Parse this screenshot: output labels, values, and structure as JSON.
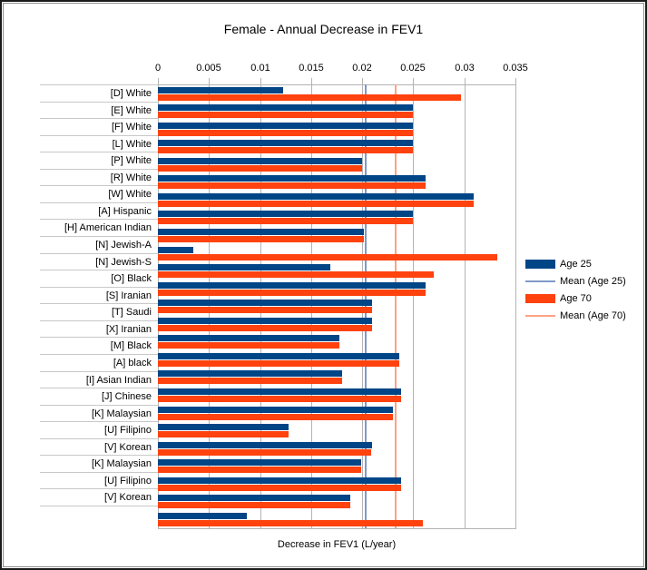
{
  "chart_data": {
    "type": "bar",
    "orientation": "horizontal",
    "title": "Female - Annual Decrease in FEV1",
    "xlabel": "Decrease in FEV1 (L/year)",
    "xlim": [
      0,
      0.035
    ],
    "x_ticks": [
      0,
      0.005,
      0.01,
      0.015,
      0.02,
      0.025,
      0.03,
      0.035
    ],
    "x_tick_labels": [
      "0",
      "0.005",
      "0.01",
      "0.015",
      "0.02",
      "0.025",
      "0.03",
      "0.035"
    ],
    "grid": "vertical-only",
    "legend_position": "right",
    "categories": [
      "[D] White",
      "[E] White",
      "[F] White",
      "[L] White",
      "[P] White",
      "[R] White",
      "[W] White",
      "[A] Hispanic",
      "[H] American Indian",
      "[N] Jewish-A",
      "[N] Jewish-S",
      "[O] Black",
      "[S] Iranian",
      "[T] Saudi",
      "[X] Iranian",
      "[M] Black",
      "[A] black",
      "[I] Asian Indian",
      "[J] Chinese",
      "[K] Malaysian",
      "[U] Filipino",
      "[V] Korean",
      "[K] Malaysian",
      "[U] Filipino",
      "[V] Korean"
    ],
    "series": [
      {
        "name": "Age 25",
        "color": "#004586",
        "values": [
          0.0123,
          0.025,
          0.025,
          0.025,
          0.02,
          0.0262,
          0.0309,
          0.025,
          0.0202,
          0.0035,
          0.0169,
          0.0262,
          0.021,
          0.021,
          0.0178,
          0.0236,
          0.018,
          0.0238,
          0.023,
          0.0128,
          0.021,
          0.0199,
          0.0238,
          0.0188,
          0.0087
        ]
      },
      {
        "name": "Age 70",
        "color": "#ff420e",
        "values": [
          0.0297,
          0.025,
          0.025,
          0.025,
          0.02,
          0.0262,
          0.0309,
          0.025,
          0.0202,
          0.0332,
          0.027,
          0.0262,
          0.021,
          0.021,
          0.0178,
          0.0236,
          0.018,
          0.0238,
          0.023,
          0.0128,
          0.0209,
          0.0199,
          0.0238,
          0.0188,
          0.0259
        ]
      }
    ],
    "mean_lines": [
      {
        "name": "Mean (Age 25)",
        "value": 0.0203,
        "color": "#8099c7"
      },
      {
        "name": "Mean (Age 70)",
        "value": 0.0233,
        "color": "#ffa183"
      }
    ]
  },
  "legend": [
    {
      "label": "Age 25",
      "swatch": "bar",
      "color": "#004586"
    },
    {
      "label": "Mean (Age 25)",
      "swatch": "line",
      "color": "#8099c7"
    },
    {
      "label": "Age 70",
      "swatch": "bar",
      "color": "#ff420e"
    },
    {
      "label": "Mean (Age 70)",
      "swatch": "line",
      "color": "#ffa183"
    }
  ],
  "colors": {
    "bar_age25": "#004586",
    "bar_age70": "#ff420e",
    "mean_age25_line": "#8099c7",
    "mean_age70_line": "#ffa183",
    "gridline": "#b3b3b3",
    "row_separator": "#c8c8c8",
    "background": "#ffffff",
    "border": "#1a1a1a"
  }
}
